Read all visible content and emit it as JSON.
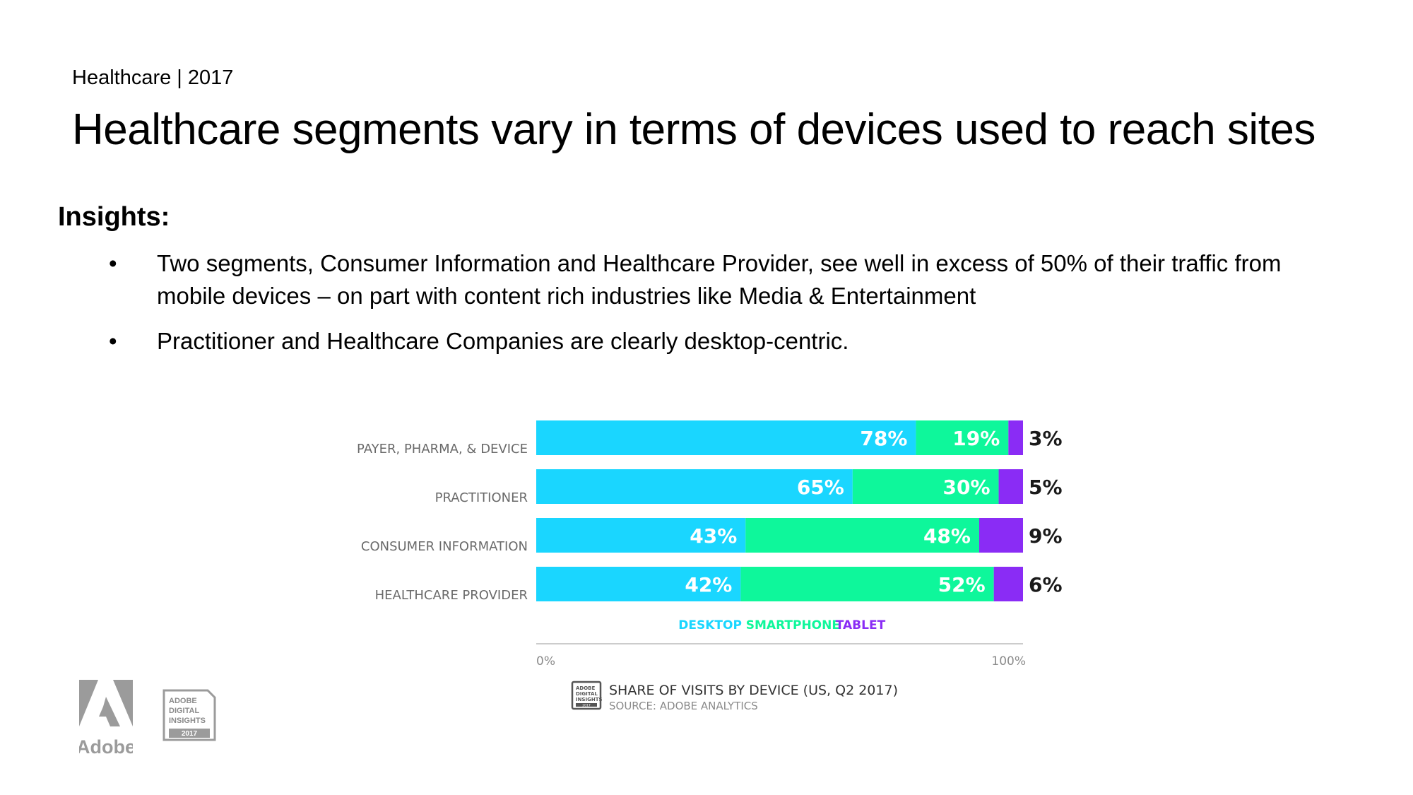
{
  "header": {
    "eyebrow": "Healthcare | 2017",
    "title": "Healthcare segments vary in terms of devices used to reach sites"
  },
  "insights": {
    "heading": "Insights:",
    "bullets": [
      "Two segments, Consumer Information and Healthcare Provider, see well in excess of  50% of their traffic from mobile devices – on part with content rich industries like Media & Entertainment",
      "Practitioner and Healthcare Companies are clearly desktop-centric."
    ]
  },
  "chart_data": {
    "type": "bar",
    "orientation": "horizontal",
    "stacked": true,
    "categories": [
      "PAYER, PHARMA, & DEVICE",
      "PRACTITIONER",
      "CONSUMER INFORMATION",
      "HEALTHCARE PROVIDER"
    ],
    "series": [
      {
        "name": "DESKTOP",
        "color": "#1ad6ff",
        "values": [
          78,
          65,
          43,
          42
        ]
      },
      {
        "name": "SMARTPHONE",
        "color": "#0ef79b",
        "values": [
          19,
          30,
          48,
          52
        ]
      },
      {
        "name": "TABLET",
        "color": "#8a2cf5",
        "values": [
          3,
          5,
          9,
          6
        ]
      }
    ],
    "data_labels": [
      [
        "78%",
        "19%",
        "3%"
      ],
      [
        "65%",
        "30%",
        "5%"
      ],
      [
        "43%",
        "48%",
        "9%"
      ],
      [
        "42%",
        "52%",
        "6%"
      ]
    ],
    "axis_labels": [
      "0%",
      "100%"
    ],
    "xlim": [
      0,
      100
    ],
    "title": "SHARE OF VISITS BY DEVICE (US, Q2 2017)",
    "source": "SOURCE: ADOBE ANALYTICS",
    "legend_position": "bottom-center"
  },
  "badge": {
    "small_lines": [
      "ADOBE",
      "DIGITAL",
      "INSIGHTS",
      "2017"
    ],
    "lines": [
      "ADOBE",
      "DIGITAL",
      "INSIGHTS"
    ],
    "year": "2017"
  },
  "brand": {
    "logo_name": "Adobe",
    "logo_color": "#9b9b9b"
  }
}
